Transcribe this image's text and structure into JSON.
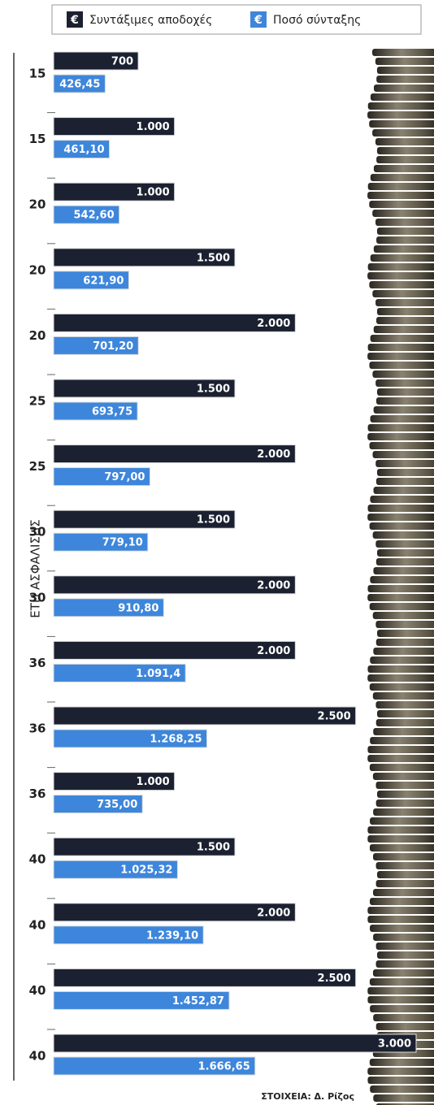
{
  "chart_data": {
    "type": "bar",
    "orientation": "horizontal",
    "y_axis_label": "ΕΤΗ ΑΣΦΑΛΙΣΗΣ",
    "source": "ΣΤΟΙΧΕΙΑ: Δ. Ρίζος",
    "legend_symbol": "€",
    "categories": [
      "15",
      "15",
      "20",
      "20",
      "20",
      "25",
      "25",
      "30",
      "30",
      "36",
      "36",
      "36",
      "40",
      "40",
      "40",
      "40"
    ],
    "series": [
      {
        "name": "Συντάξιμες αποδοχές",
        "color": "#1b2130",
        "values": [
          700,
          1000,
          1000,
          1500,
          2000,
          1500,
          2000,
          1500,
          2000,
          2000,
          2500,
          1000,
          1500,
          2000,
          2500,
          3000
        ],
        "value_labels": [
          "700",
          "1.000",
          "1.000",
          "1.500",
          "2.000",
          "1.500",
          "2.000",
          "1.500",
          "2.000",
          "2.000",
          "2.500",
          "1.000",
          "1.500",
          "2.000",
          "2.500",
          "3.000"
        ]
      },
      {
        "name": "Ποσό σύνταξης",
        "color": "#3d86db",
        "values": [
          426.45,
          461.1,
          542.6,
          621.9,
          701.2,
          693.75,
          797.0,
          779.1,
          910.8,
          1091.4,
          1268.25,
          735.0,
          1025.32,
          1239.1,
          1452.87,
          1666.65
        ],
        "value_labels": [
          "426,45",
          "461,10",
          "542,60",
          "621,90",
          "701,20",
          "693,75",
          "797,00",
          "779,10",
          "910,80",
          "1.091,4",
          "1.268,25",
          "735,00",
          "1.025,32",
          "1.239,10",
          "1.452,87",
          "1.666,65"
        ]
      }
    ]
  }
}
